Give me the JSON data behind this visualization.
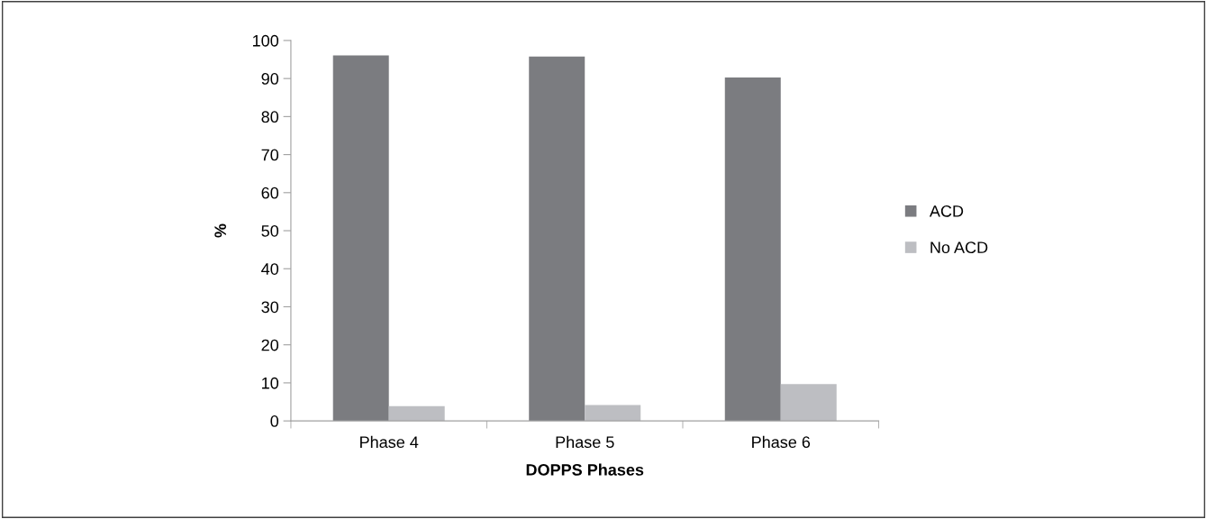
{
  "chart_data": {
    "type": "bar",
    "xlabel": "DOPPS Phases",
    "ylabel": "%",
    "categories": [
      "Phase 4",
      "Phase 5",
      "Phase 6"
    ],
    "series": [
      {
        "name": "ACD",
        "color": "#7b7c80",
        "values": [
          96.1,
          95.8,
          90.3
        ]
      },
      {
        "name": "No ACD",
        "color": "#bdbec2",
        "values": [
          3.9,
          4.2,
          9.7
        ]
      }
    ],
    "ylim": [
      0,
      100
    ],
    "yticks": [
      0,
      10,
      20,
      30,
      40,
      50,
      60,
      70,
      80,
      90,
      100
    ],
    "grid": false,
    "legend": "right"
  }
}
